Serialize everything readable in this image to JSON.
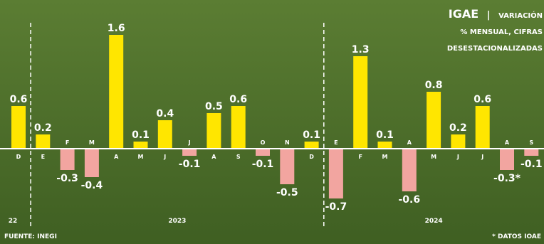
{
  "header": {
    "title_bold": "IGAE",
    "title_sep": "|",
    "title_rest": "VARIACIÓN",
    "subtitle_line2": "% MENSUAL, CIFRAS",
    "subtitle_line3": "DESESTACIONALIZADAS"
  },
  "footer": {
    "source": "FUENTE: INEGI",
    "note": "* DATOS IOAE"
  },
  "colors": {
    "background_top": "#5b7d33",
    "background_bottom": "#3f5f22",
    "positive": "#ffe600",
    "negative": "#f2a5a0",
    "text": "#ffffff",
    "divider": "#ffffff"
  },
  "chart_data": {
    "type": "bar",
    "categories": [
      "D",
      "E",
      "F",
      "M",
      "A",
      "M",
      "J",
      "J",
      "A",
      "S",
      "O",
      "N",
      "D",
      "E",
      "F",
      "M",
      "A",
      "M",
      "J",
      "J",
      "A",
      "S"
    ],
    "year_groups": [
      {
        "label": "22",
        "start": 0,
        "end": 0
      },
      {
        "label": "2023",
        "start": 1,
        "end": 12
      },
      {
        "label": "2024",
        "start": 13,
        "end": 21
      }
    ],
    "series": [
      {
        "values": [
          0.6,
          0.2,
          -0.3,
          -0.4,
          1.6,
          0.1,
          0.4,
          -0.1,
          0.5,
          0.6,
          -0.1,
          -0.5,
          0.1,
          -0.7,
          1.3,
          0.1,
          -0.6,
          0.8,
          0.2,
          0.6,
          -0.3,
          -0.1
        ],
        "value_labels": [
          "0.6",
          "0.2",
          "-0.3",
          "-0.4",
          "1.6",
          "0.1",
          "0.4",
          "-0.1",
          "0.5",
          "0.6",
          "-0.1",
          "-0.5",
          "0.1",
          "-0.7",
          "1.3",
          "0.1",
          "-0.6",
          "0.8",
          "0.2",
          "0.6",
          "-0.3*",
          "-0.1"
        ]
      }
    ],
    "ylim": [
      -0.8,
      1.7
    ],
    "grid": false,
    "legend": "none"
  }
}
